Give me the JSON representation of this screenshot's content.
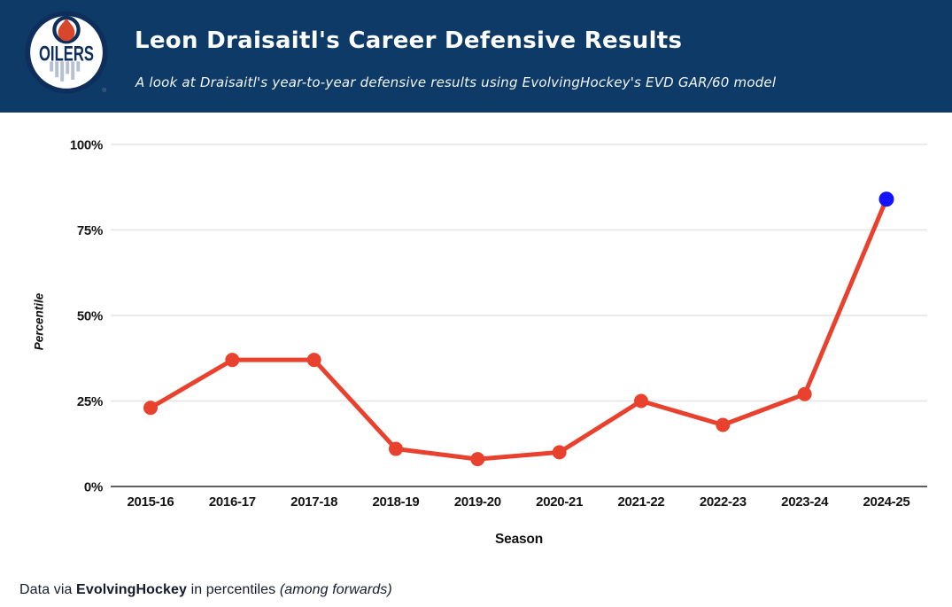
{
  "header": {
    "title": "Leon Draisaitl's Career Defensive Results",
    "subtitle": "A look at Draisaitl's year-to-year defensive results using EvolvingHockey's EVD GAR/60 model",
    "background_color": "#0d3a66",
    "logo": {
      "team": "Edmonton Oilers",
      "wordmark": "OILERS",
      "registered_mark": "®",
      "navy_color": "#0e2f5c",
      "orange_color": "#d8472b"
    }
  },
  "chart_data": {
    "type": "line",
    "categories": [
      "2015-16",
      "2016-17",
      "2017-18",
      "2018-19",
      "2019-20",
      "2020-21",
      "2021-22",
      "2022-23",
      "2023-24",
      "2024-25"
    ],
    "values": [
      23,
      37,
      37,
      11,
      8,
      10,
      25,
      18,
      27,
      84
    ],
    "unit": "%",
    "xlabel": "Season",
    "ylabel": "Percentile",
    "ylim": [
      0,
      100
    ],
    "yticks": [
      0,
      25,
      50,
      75,
      100
    ],
    "ytick_labels": [
      "0%",
      "25%",
      "50%",
      "75%",
      "100%"
    ],
    "grid": true,
    "legend": "none",
    "line_color": "#e8422f",
    "point_color": "#e8422f",
    "last_point_color": "#1414ff",
    "grid_color": "#e4e4e4",
    "axis_line_color": "#5f5f5f",
    "tick_label_color": "#141414"
  },
  "footer": {
    "prefix": "Data via ",
    "source": "EvolvingHockey",
    "middle": " in percentiles ",
    "note": "(among forwards)"
  }
}
